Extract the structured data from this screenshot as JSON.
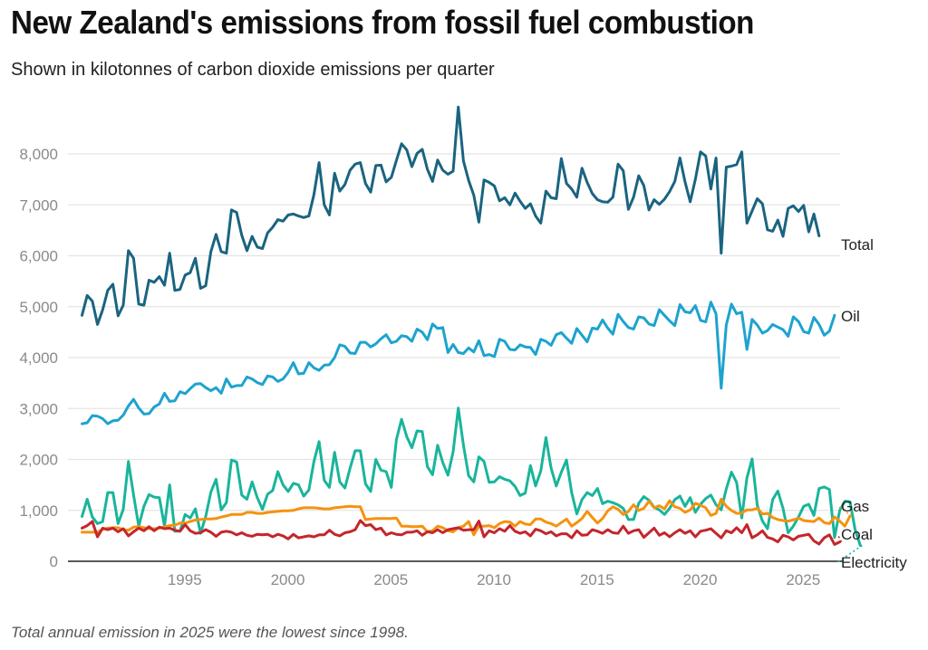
{
  "header": {
    "title": "New Zealand's emissions from fossil fuel combustion",
    "subtitle": "Shown in kilotonnes of carbon dioxide emissions per quarter"
  },
  "footer": {
    "note": "Total annual emission in 2025 were the lowest since 1998."
  },
  "chart_data": {
    "type": "line",
    "title": "New Zealand's emissions from fossil fuel combustion",
    "subtitle": "Shown in kilotonnes of carbon dioxide emissions per quarter",
    "xlabel": "",
    "ylabel": "",
    "x_start": 1990,
    "x_step": 0.25,
    "xlim": [
      1990,
      2026.2
    ],
    "ylim": [
      0,
      8000
    ],
    "yticks": [
      0,
      1000,
      2000,
      3000,
      4000,
      5000,
      6000,
      7000,
      8000
    ],
    "ytick_labels": [
      "0",
      "1,000",
      "2,000",
      "3,000",
      "4,000",
      "5,000",
      "6,000",
      "7,000",
      "8,000"
    ],
    "xticks": [
      1995,
      2000,
      2005,
      2010,
      2015,
      2020,
      2025
    ],
    "xtick_labels": [
      "1995",
      "2000",
      "2005",
      "2010",
      "2015",
      "2020",
      "2025"
    ],
    "grid": true,
    "legend": "end-of-line labels (right)",
    "series": [
      {
        "name": "Total",
        "color": "#1a6480",
        "values": [
          4830,
          5220,
          5110,
          4650,
          4940,
          5320,
          5440,
          4820,
          5030,
          6100,
          5950,
          5050,
          5030,
          5520,
          5480,
          5590,
          5420,
          6050,
          5320,
          5340,
          5620,
          5670,
          5950,
          5360,
          5410,
          6080,
          6420,
          6080,
          6050,
          6900,
          6850,
          6400,
          6100,
          6380,
          6170,
          6140,
          6450,
          6560,
          6710,
          6680,
          6800,
          6820,
          6780,
          6750,
          6780,
          7200,
          7830,
          7000,
          6800,
          7620,
          7270,
          7400,
          7680,
          7800,
          7830,
          7420,
          7250,
          7770,
          7780,
          7450,
          7540,
          7870,
          8200,
          8080,
          7750,
          8010,
          8090,
          7700,
          7460,
          7880,
          7680,
          7600,
          7660,
          8920,
          7860,
          7480,
          7190,
          6660,
          7490,
          7440,
          7370,
          7080,
          7140,
          7000,
          7230,
          7070,
          6930,
          7020,
          6780,
          6640,
          7270,
          7140,
          7120,
          7910,
          7420,
          7310,
          7150,
          7720,
          7440,
          7220,
          7100,
          7060,
          7050,
          7150,
          7800,
          7670,
          6910,
          7150,
          7570,
          7380,
          6900,
          7100,
          7010,
          7110,
          7260,
          7460,
          7920,
          7450,
          7060,
          7500,
          8040,
          7960,
          7310,
          7920,
          6050,
          7740,
          7760,
          7790,
          8040,
          6640,
          6880,
          7120,
          7020,
          6510,
          6480,
          6700,
          6380,
          6930,
          6980,
          6870,
          6990,
          6470,
          6820,
          6390
        ]
      },
      {
        "name": "Oil",
        "color": "#1ea3cf",
        "values": [
          2700,
          2720,
          2860,
          2850,
          2800,
          2700,
          2760,
          2770,
          2870,
          3050,
          3180,
          3010,
          2890,
          2900,
          3030,
          3090,
          3300,
          3140,
          3150,
          3330,
          3290,
          3390,
          3480,
          3490,
          3410,
          3350,
          3410,
          3300,
          3580,
          3420,
          3450,
          3450,
          3620,
          3580,
          3510,
          3470,
          3640,
          3620,
          3530,
          3580,
          3710,
          3900,
          3680,
          3690,
          3900,
          3800,
          3750,
          3850,
          3860,
          4000,
          4250,
          4220,
          4090,
          4080,
          4300,
          4300,
          4210,
          4270,
          4370,
          4450,
          4290,
          4320,
          4430,
          4410,
          4320,
          4560,
          4500,
          4350,
          4660,
          4570,
          4590,
          4100,
          4260,
          4100,
          4080,
          4190,
          4110,
          4330,
          4040,
          4060,
          4020,
          4360,
          4320,
          4160,
          4150,
          4250,
          4210,
          4200,
          4060,
          4360,
          4320,
          4240,
          4450,
          4490,
          4380,
          4280,
          4570,
          4440,
          4310,
          4580,
          4560,
          4740,
          4580,
          4460,
          4850,
          4710,
          4590,
          4560,
          4800,
          4780,
          4660,
          4630,
          4940,
          4830,
          4720,
          4630,
          5040,
          4900,
          4880,
          5020,
          4730,
          4700,
          5090,
          4860,
          3400,
          4640,
          5050,
          4860,
          4890,
          4160,
          4750,
          4640,
          4480,
          4530,
          4650,
          4600,
          4550,
          4420,
          4800,
          4710,
          4510,
          4480,
          4790,
          4650,
          4440,
          4520,
          4830
        ]
      },
      {
        "name": "Electricity",
        "color": "#19b59b",
        "values": [
          880,
          1220,
          870,
          740,
          780,
          1350,
          1350,
          740,
          1020,
          1960,
          1300,
          690,
          1080,
          1310,
          1260,
          1250,
          690,
          1500,
          590,
          590,
          920,
          850,
          1030,
          550,
          880,
          1360,
          1610,
          1010,
          1150,
          1990,
          1950,
          1300,
          1220,
          1560,
          1250,
          1020,
          1320,
          1390,
          1760,
          1500,
          1370,
          1530,
          1500,
          1280,
          1400,
          1960,
          2350,
          1590,
          1450,
          2140,
          1560,
          1440,
          1830,
          2170,
          2170,
          1520,
          1370,
          2000,
          1790,
          1760,
          1450,
          2390,
          2790,
          2450,
          2230,
          2560,
          2550,
          1860,
          1700,
          2280,
          1940,
          1690,
          2150,
          3010,
          2280,
          1680,
          1560,
          2050,
          1960,
          1550,
          1560,
          1660,
          1610,
          1580,
          1470,
          1290,
          1340,
          1880,
          1480,
          1770,
          2430,
          1830,
          1480,
          1750,
          1990,
          1350,
          930,
          1210,
          1350,
          1290,
          1430,
          1130,
          1180,
          1150,
          1110,
          1040,
          820,
          820,
          1140,
          1270,
          1200,
          1060,
          1010,
          920,
          1040,
          1210,
          1280,
          1080,
          1250,
          960,
          1120,
          1230,
          1300,
          1110,
          1010,
          1420,
          1750,
          1550,
          850,
          1640,
          2010,
          1100,
          790,
          640,
          1210,
          1380,
          1040,
          560,
          690,
          870,
          1080,
          1120,
          900,
          1430,
          1460,
          1410,
          470,
          1000,
          1180,
          1170,
          620,
          310
        ]
      },
      {
        "name": "Gas",
        "color": "#f5920f",
        "values": [
          570,
          570,
          570,
          570,
          630,
          650,
          660,
          660,
          620,
          610,
          670,
          680,
          660,
          640,
          640,
          650,
          680,
          700,
          710,
          750,
          750,
          780,
          810,
          820,
          830,
          830,
          840,
          870,
          890,
          920,
          920,
          920,
          960,
          960,
          940,
          940,
          960,
          970,
          980,
          990,
          990,
          1000,
          1030,
          1050,
          1050,
          1050,
          1040,
          1030,
          1030,
          1050,
          1060,
          1070,
          1080,
          1070,
          1070,
          820,
          830,
          840,
          840,
          840,
          840,
          850,
          690,
          690,
          680,
          680,
          690,
          580,
          600,
          690,
          660,
          600,
          580,
          660,
          690,
          780,
          520,
          690,
          690,
          700,
          660,
          740,
          780,
          770,
          690,
          780,
          730,
          720,
          830,
          830,
          770,
          740,
          690,
          760,
          830,
          690,
          760,
          840,
          980,
          860,
          750,
          840,
          990,
          1070,
          1020,
          920,
          980,
          1110,
          1000,
          1040,
          1180,
          1050,
          1090,
          1030,
          1190,
          1070,
          1040,
          960,
          1010,
          1140,
          1100,
          1050,
          900,
          940,
          1220,
          1080,
          1000,
          940,
          950,
          1010,
          1010,
          1040,
          930,
          940,
          860,
          820,
          800,
          790,
          810,
          850,
          800,
          790,
          780,
          850,
          760,
          740,
          870,
          790,
          690,
          890
        ]
      },
      {
        "name": "Coal",
        "color": "#c4262b",
        "values": [
          650,
          700,
          780,
          480,
          650,
          620,
          650,
          580,
          640,
          500,
          580,
          650,
          600,
          680,
          600,
          670,
          640,
          650,
          610,
          590,
          720,
          600,
          550,
          560,
          620,
          570,
          490,
          570,
          590,
          570,
          520,
          560,
          510,
          490,
          530,
          520,
          530,
          480,
          530,
          500,
          440,
          530,
          460,
          480,
          500,
          480,
          520,
          520,
          610,
          530,
          500,
          560,
          580,
          620,
          800,
          700,
          720,
          620,
          650,
          520,
          560,
          530,
          520,
          570,
          570,
          600,
          510,
          580,
          560,
          620,
          560,
          620,
          640,
          660,
          610,
          620,
          620,
          790,
          480,
          600,
          560,
          640,
          590,
          700,
          590,
          550,
          580,
          500,
          630,
          600,
          540,
          580,
          500,
          540,
          540,
          460,
          600,
          510,
          520,
          620,
          590,
          550,
          620,
          560,
          550,
          690,
          550,
          600,
          620,
          470,
          560,
          650,
          510,
          560,
          480,
          560,
          620,
          550,
          600,
          480,
          590,
          610,
          640,
          550,
          460,
          600,
          560,
          660,
          560,
          720,
          460,
          520,
          600,
          470,
          440,
          380,
          510,
          480,
          420,
          490,
          510,
          530,
          400,
          340,
          460,
          520,
          330,
          380
        ]
      }
    ]
  }
}
